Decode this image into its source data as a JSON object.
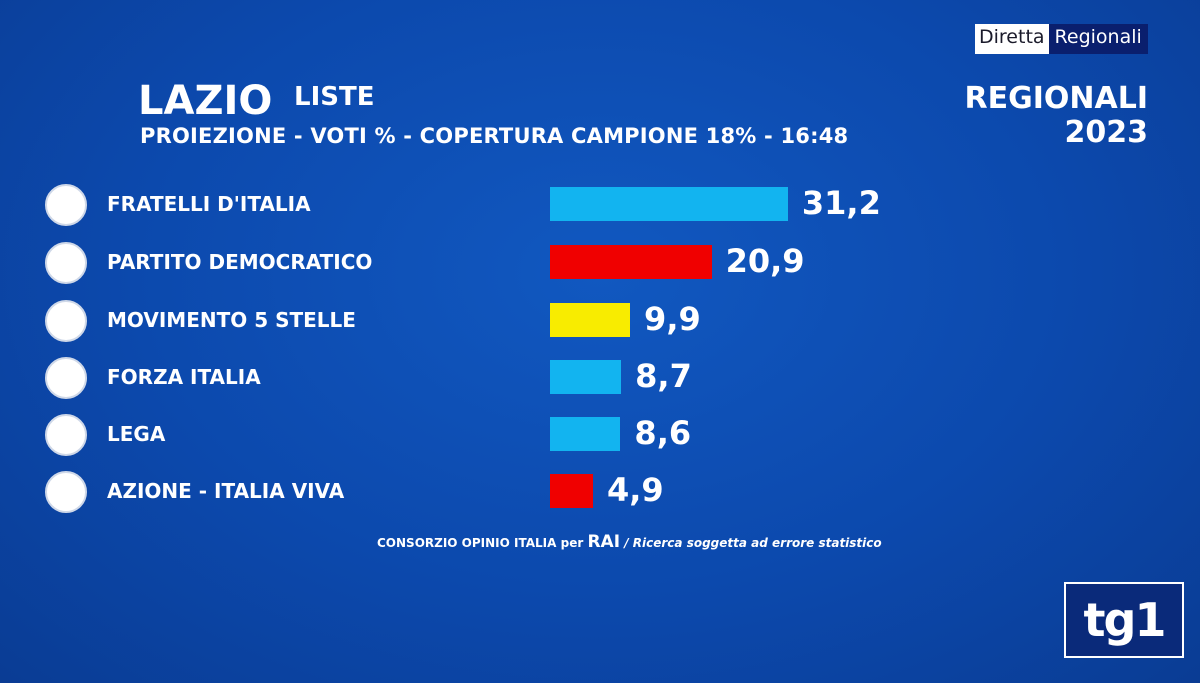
{
  "badge": {
    "left": "Diretta",
    "right": "Regionali"
  },
  "header": {
    "region": "LAZIO",
    "type": "LISTE",
    "subtitle": "PROIEZIONE - VOTI % - COPERTURA CAMPIONE 18% - 16:48",
    "event_line1": "REGIONALI",
    "event_line2": "2023"
  },
  "chart_data": {
    "type": "bar",
    "orientation": "horizontal",
    "title": "LAZIO LISTE",
    "subtitle": "PROIEZIONE - VOTI % - COPERTURA CAMPIONE 18% - 16:48",
    "categories": [
      "FRATELLI D'ITALIA",
      "PARTITO DEMOCRATICO",
      "MOVIMENTO 5 STELLE",
      "FORZA ITALIA",
      "LEGA",
      "AZIONE - ITALIA VIVA"
    ],
    "values": [
      31.2,
      20.9,
      9.9,
      8.7,
      8.6,
      4.9
    ],
    "labels": [
      "31,2",
      "20,9",
      "9,9",
      "8,7",
      "8,6",
      "4,9"
    ],
    "colors": [
      "#12b4f0",
      "#f00000",
      "#f8ec00",
      "#12b4f0",
      "#12b4f0",
      "#f00000"
    ],
    "xlabel": "",
    "ylabel": "Voti %"
  },
  "source": {
    "prefix": "CONSORZIO OPINIO ITALIA per",
    "brand": "RAI",
    "note": "/ Ricerca soggetta ad errore statistico"
  },
  "logo": "tg1"
}
